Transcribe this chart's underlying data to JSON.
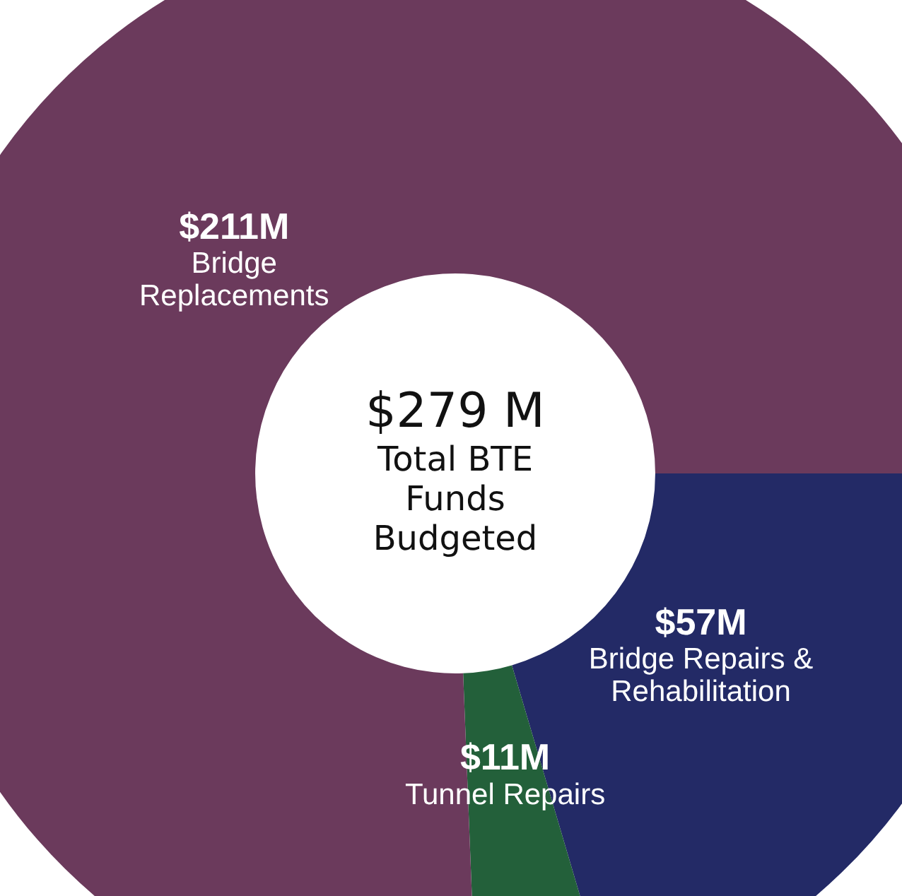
{
  "chart_data": {
    "type": "donut",
    "categories": [
      "Bridge Repairs & Rehabilitation",
      "Tunnel Repairs",
      "Bridge Replacements"
    ],
    "values": [
      57,
      11,
      211
    ],
    "colors": [
      "#232a66",
      "#23603a",
      "#6b3a5c"
    ],
    "value_labels": [
      "$57M",
      "$11M",
      "$211M"
    ],
    "annotations": [
      "$279 M",
      "Total BTE Funds Budgeted"
    ],
    "legend": false
  }
}
